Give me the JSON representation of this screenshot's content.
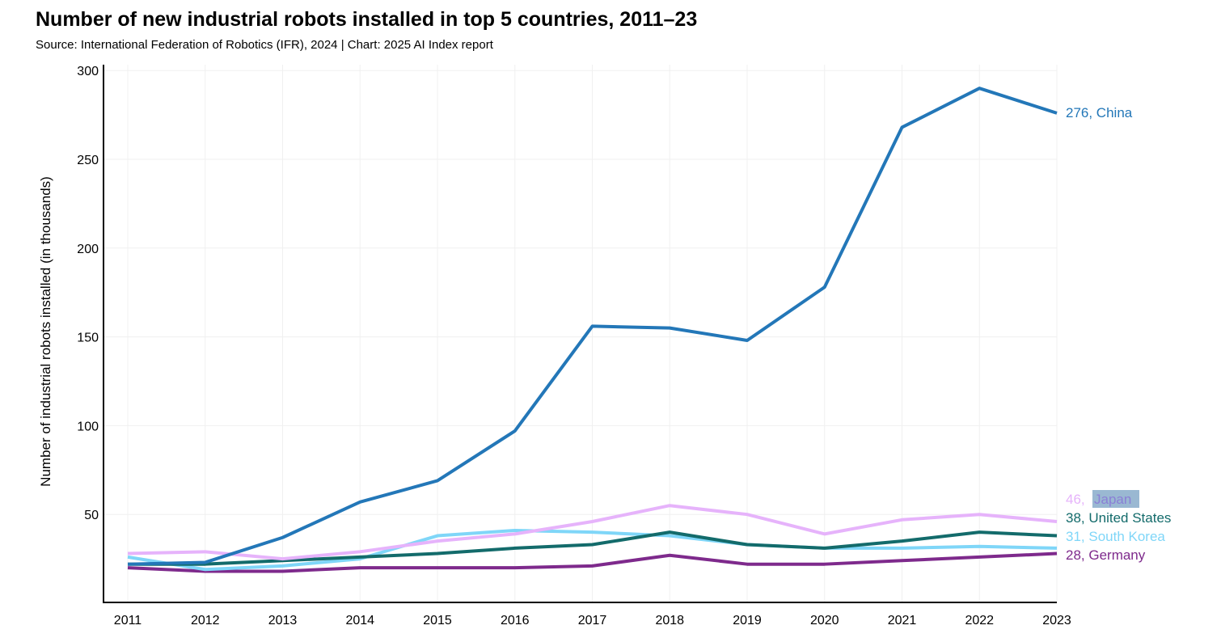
{
  "chart_data": {
    "type": "line",
    "title": "Number of new industrial robots installed in top 5 countries, 2011–23",
    "subtitle": "Source: International Federation of Robotics (IFR), 2024 | Chart: 2025 AI Index report",
    "xlabel": "",
    "ylabel": "Number of industrial robots installed (in thousands)",
    "ylim": [
      0,
      300
    ],
    "yticks": [
      50,
      100,
      150,
      200,
      250,
      300
    ],
    "x": [
      2011,
      2012,
      2013,
      2014,
      2015,
      2016,
      2017,
      2018,
      2019,
      2020,
      2021,
      2022,
      2023
    ],
    "grid": true,
    "series": [
      {
        "name": "China",
        "end_label": "276, China",
        "color": "#2377b8",
        "values": [
          22,
          23,
          37,
          57,
          69,
          97,
          156,
          155,
          148,
          178,
          268,
          290,
          276
        ]
      },
      {
        "name": "Japan",
        "end_label_value": "46,",
        "end_label_name": "Japan",
        "color": "#e6b3fb",
        "values": [
          28,
          29,
          25,
          29,
          35,
          39,
          46,
          55,
          50,
          39,
          47,
          50,
          46
        ]
      },
      {
        "name": "United States",
        "end_label": "38, United States",
        "color": "#136b6b",
        "values": [
          22,
          22,
          24,
          26,
          28,
          31,
          33,
          40,
          33,
          31,
          35,
          40,
          38
        ]
      },
      {
        "name": "South Korea",
        "end_label": "31, South Korea",
        "color": "#7fd6f8",
        "values": [
          26,
          19,
          21,
          25,
          38,
          41,
          40,
          38,
          33,
          31,
          31,
          32,
          31
        ]
      },
      {
        "name": "Germany",
        "end_label": "28, Germany",
        "color": "#7e2a8c",
        "values": [
          20,
          18,
          18,
          20,
          20,
          20,
          21,
          27,
          22,
          22,
          24,
          26,
          28
        ]
      }
    ]
  }
}
